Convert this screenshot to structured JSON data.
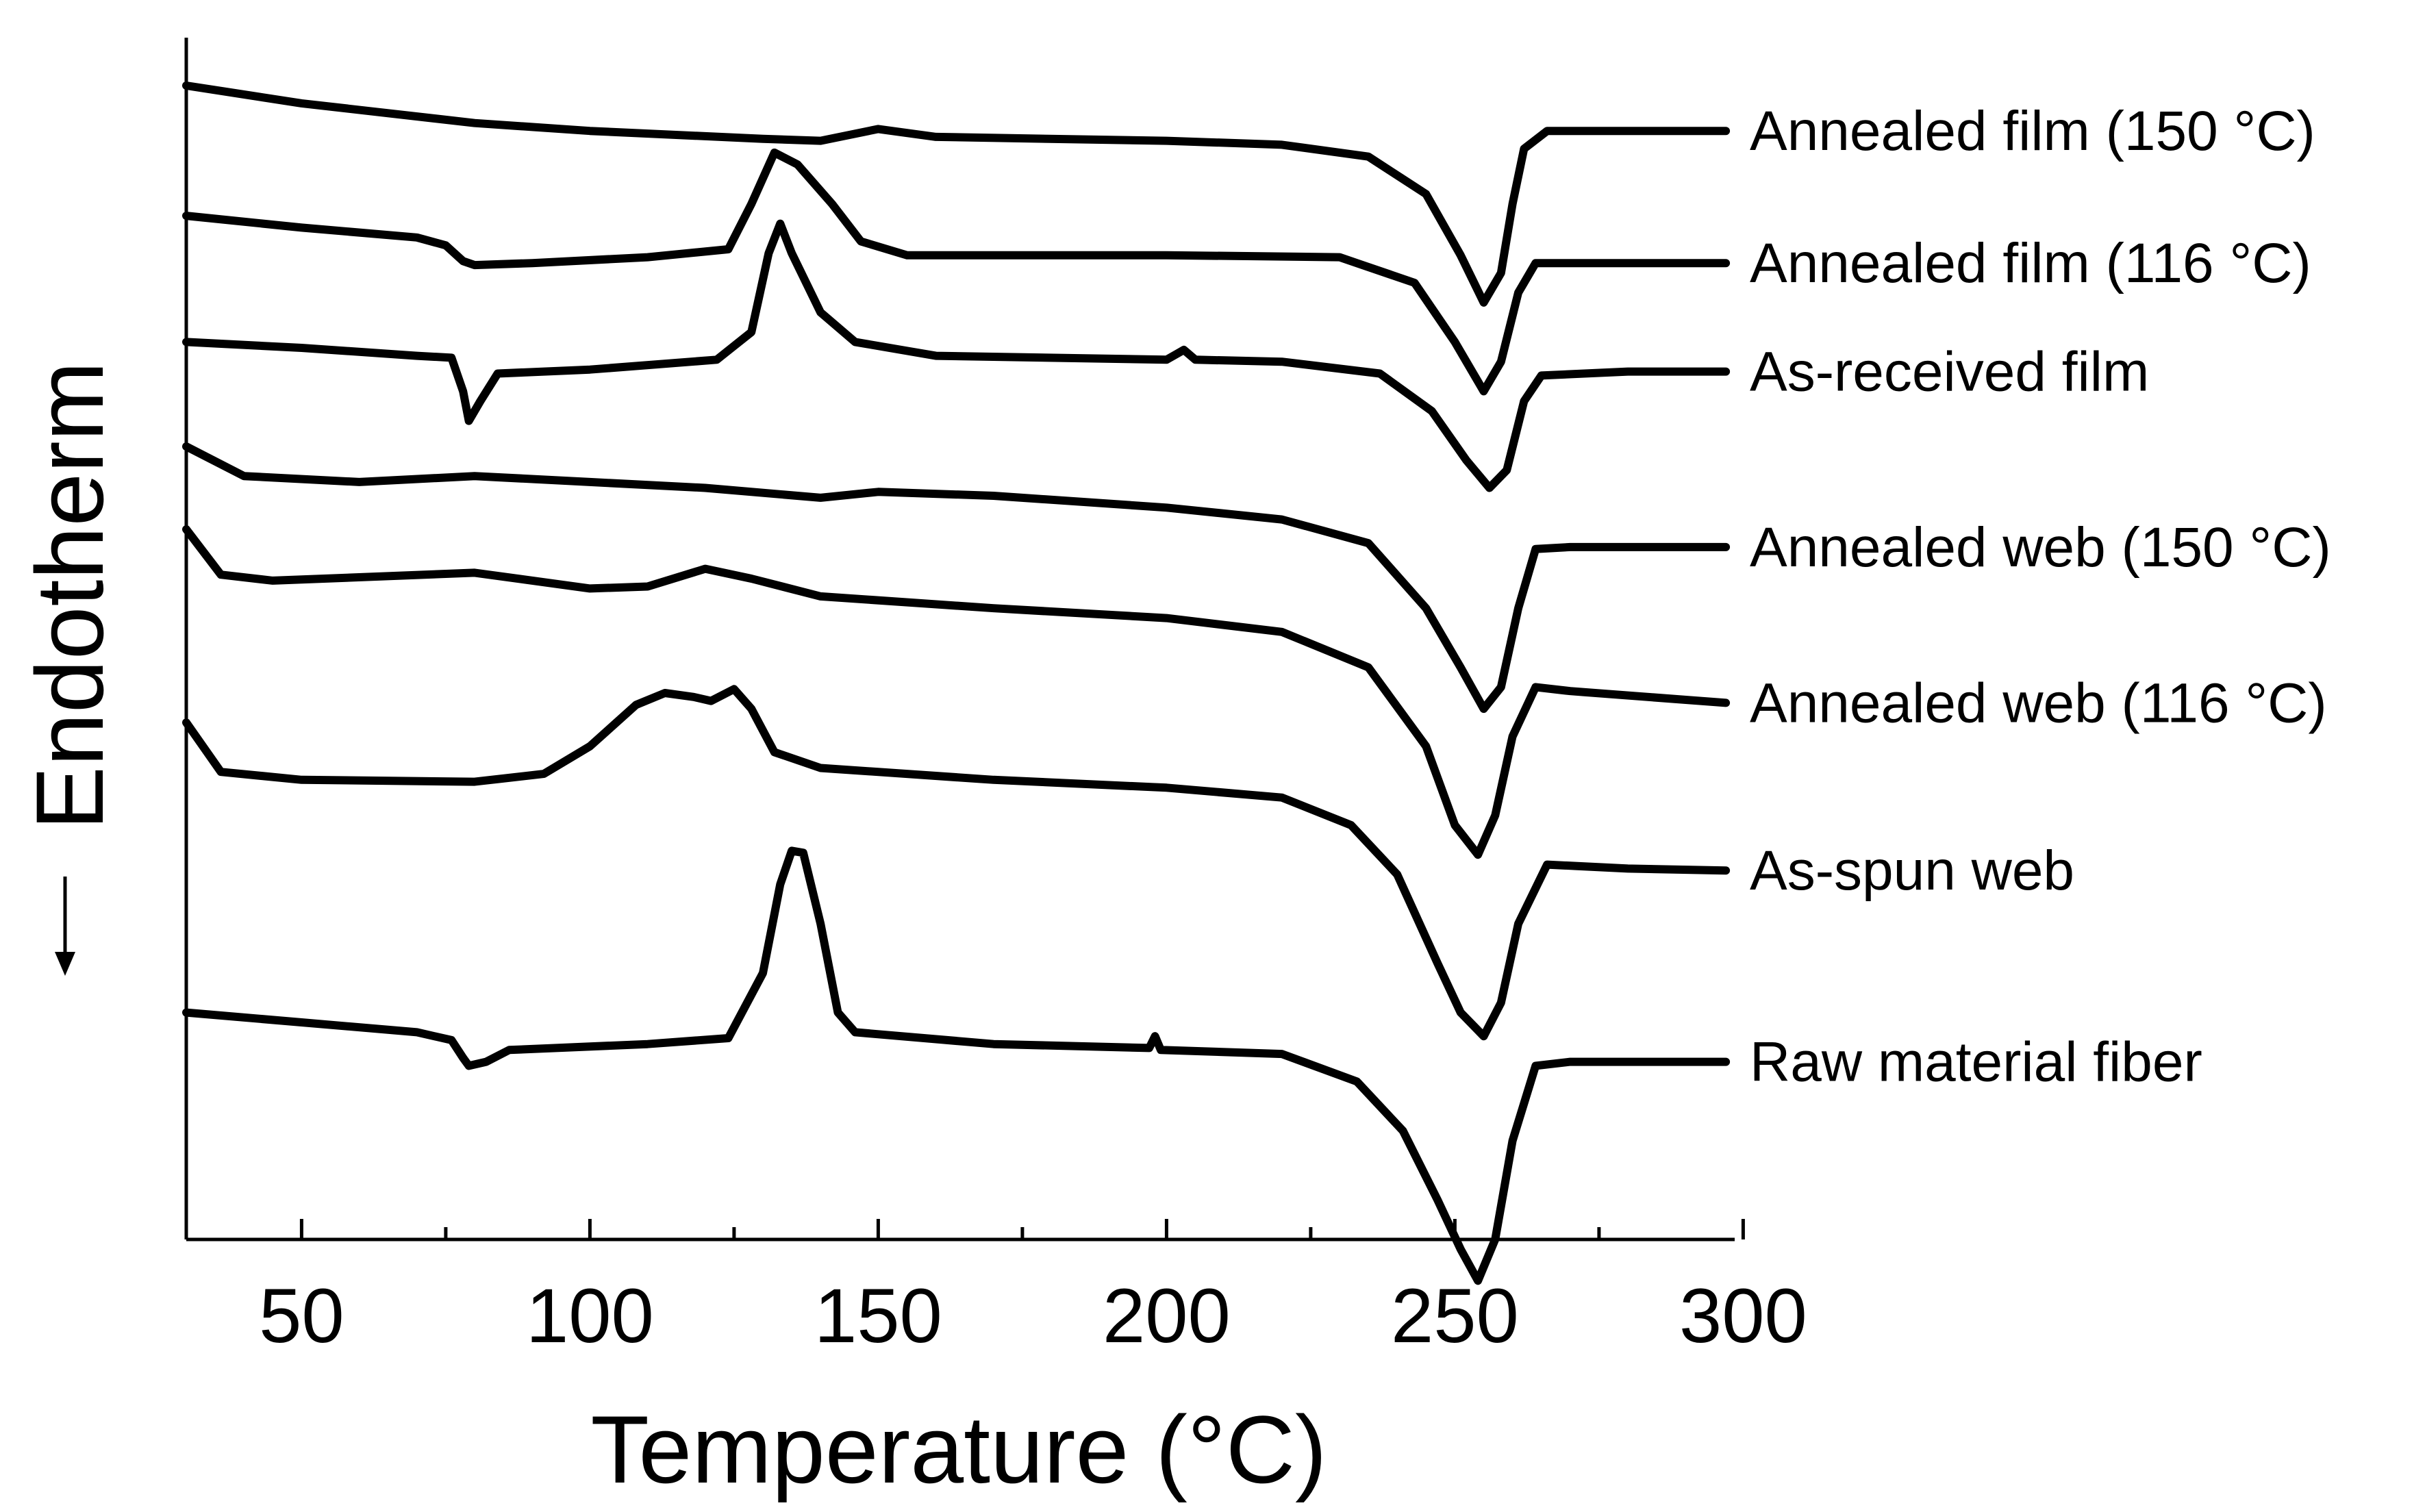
{
  "chart_data": {
    "type": "line",
    "title": "",
    "xlabel": "Temperature (°C)",
    "ylabel": "Endotherm",
    "ylabel_arrow": "down",
    "xlim": [
      30,
      300
    ],
    "xticks": [
      50,
      100,
      150,
      200,
      250,
      300
    ],
    "xtick_labels": [
      "50",
      "100",
      "150",
      "200",
      "250",
      "300"
    ],
    "y_units": "arbitrary (stacked DSC curves, offset)",
    "series": [
      {
        "name": "Annealed film (150 °C)",
        "points": [
          [
            30,
            0.0
          ],
          [
            50,
            -0.9
          ],
          [
            80,
            -1.9
          ],
          [
            100,
            -2.3
          ],
          [
            130,
            -2.7
          ],
          [
            140,
            -2.8
          ],
          [
            150,
            -2.2
          ],
          [
            160,
            -2.6
          ],
          [
            200,
            -2.8
          ],
          [
            220,
            -3.0
          ],
          [
            235,
            -3.6
          ],
          [
            245,
            -5.5
          ],
          [
            251,
            -8.6
          ],
          [
            255,
            -11.0
          ],
          [
            258,
            -9.5
          ],
          [
            260,
            -6.0
          ],
          [
            262,
            -3.2
          ],
          [
            266,
            -2.3
          ],
          [
            280,
            -2.3
          ],
          [
            297,
            -2.3
          ]
        ]
      },
      {
        "name": "Annealed film (116 °C)",
        "points": [
          [
            30,
            -6.6
          ],
          [
            50,
            -7.2
          ],
          [
            70,
            -7.7
          ],
          [
            75,
            -8.1
          ],
          [
            78,
            -8.9
          ],
          [
            80,
            -9.1
          ],
          [
            90,
            -9.0
          ],
          [
            110,
            -8.7
          ],
          [
            124,
            -8.3
          ],
          [
            128,
            -6.0
          ],
          [
            132,
            -3.4
          ],
          [
            136,
            -4.0
          ],
          [
            142,
            -6.0
          ],
          [
            147,
            -7.9
          ],
          [
            155,
            -8.6
          ],
          [
            200,
            -8.6
          ],
          [
            230,
            -8.7
          ],
          [
            243,
            -10.0
          ],
          [
            250,
            -13.0
          ],
          [
            255,
            -15.5
          ],
          [
            258,
            -14.0
          ],
          [
            261,
            -10.5
          ],
          [
            264,
            -9.0
          ],
          [
            280,
            -9.0
          ],
          [
            297,
            -9.0
          ]
        ]
      },
      {
        "name": "As-received film",
        "points": [
          [
            30,
            -13.0
          ],
          [
            50,
            -13.3
          ],
          [
            70,
            -13.7
          ],
          [
            76,
            -13.8
          ],
          [
            78,
            -15.5
          ],
          [
            79,
            -17.0
          ],
          [
            81,
            -16.0
          ],
          [
            84,
            -14.6
          ],
          [
            100,
            -14.4
          ],
          [
            122,
            -13.9
          ],
          [
            128,
            -12.5
          ],
          [
            131,
            -8.5
          ],
          [
            133,
            -7.0
          ],
          [
            135,
            -8.5
          ],
          [
            140,
            -11.5
          ],
          [
            146,
            -13.0
          ],
          [
            160,
            -13.7
          ],
          [
            200,
            -13.9
          ],
          [
            203,
            -13.4
          ],
          [
            205,
            -13.9
          ],
          [
            220,
            -14.0
          ],
          [
            237,
            -14.6
          ],
          [
            246,
            -16.5
          ],
          [
            252,
            -19.0
          ],
          [
            256,
            -20.4
          ],
          [
            259,
            -19.5
          ],
          [
            262,
            -16.0
          ],
          [
            265,
            -14.7
          ],
          [
            280,
            -14.5
          ],
          [
            297,
            -14.5
          ]
        ]
      },
      {
        "name": "Annealed web (150 °C)",
        "points": [
          [
            30,
            -18.3
          ],
          [
            40,
            -19.8
          ],
          [
            60,
            -20.1
          ],
          [
            80,
            -19.8
          ],
          [
            100,
            -20.1
          ],
          [
            120,
            -20.4
          ],
          [
            140,
            -20.9
          ],
          [
            150,
            -20.6
          ],
          [
            170,
            -20.8
          ],
          [
            200,
            -21.4
          ],
          [
            220,
            -22.0
          ],
          [
            235,
            -23.2
          ],
          [
            245,
            -26.5
          ],
          [
            251,
            -29.5
          ],
          [
            255,
            -31.6
          ],
          [
            258,
            -30.5
          ],
          [
            261,
            -26.5
          ],
          [
            264,
            -23.5
          ],
          [
            270,
            -23.4
          ],
          [
            297,
            -23.4
          ]
        ]
      },
      {
        "name": "Annealed web (116 °C)",
        "points": [
          [
            30,
            -22.5
          ],
          [
            36,
            -24.8
          ],
          [
            45,
            -25.1
          ],
          [
            80,
            -24.7
          ],
          [
            100,
            -25.5
          ],
          [
            110,
            -25.4
          ],
          [
            120,
            -24.5
          ],
          [
            128,
            -25.0
          ],
          [
            140,
            -25.9
          ],
          [
            170,
            -26.5
          ],
          [
            200,
            -27.0
          ],
          [
            220,
            -27.7
          ],
          [
            235,
            -29.5
          ],
          [
            245,
            -33.5
          ],
          [
            250,
            -37.5
          ],
          [
            254,
            -39.0
          ],
          [
            257,
            -37.0
          ],
          [
            260,
            -33.0
          ],
          [
            264,
            -30.5
          ],
          [
            270,
            -30.7
          ],
          [
            297,
            -31.3
          ]
        ]
      },
      {
        "name": "As-spun web",
        "points": [
          [
            30,
            -32.3
          ],
          [
            36,
            -34.8
          ],
          [
            50,
            -35.2
          ],
          [
            80,
            -35.3
          ],
          [
            92,
            -34.9
          ],
          [
            100,
            -33.5
          ],
          [
            108,
            -31.4
          ],
          [
            113,
            -30.8
          ],
          [
            118,
            -31.0
          ],
          [
            121,
            -31.2
          ],
          [
            125,
            -30.6
          ],
          [
            128,
            -31.6
          ],
          [
            132,
            -33.8
          ],
          [
            140,
            -34.6
          ],
          [
            170,
            -35.2
          ],
          [
            200,
            -35.6
          ],
          [
            220,
            -36.1
          ],
          [
            232,
            -37.5
          ],
          [
            240,
            -40.0
          ],
          [
            247,
            -44.5
          ],
          [
            251,
            -47.0
          ],
          [
            255,
            -48.2
          ],
          [
            258,
            -46.5
          ],
          [
            261,
            -42.5
          ],
          [
            266,
            -39.5
          ],
          [
            280,
            -39.7
          ],
          [
            297,
            -39.8
          ]
        ]
      },
      {
        "name": "Raw material fiber",
        "points": [
          [
            30,
            -47.0
          ],
          [
            50,
            -47.5
          ],
          [
            70,
            -48.0
          ],
          [
            76,
            -48.4
          ],
          [
            78,
            -49.3
          ],
          [
            79,
            -49.7
          ],
          [
            82,
            -49.5
          ],
          [
            86,
            -48.9
          ],
          [
            110,
            -48.6
          ],
          [
            124,
            -48.3
          ],
          [
            130,
            -45.0
          ],
          [
            133,
            -40.5
          ],
          [
            135,
            -38.8
          ],
          [
            137,
            -38.9
          ],
          [
            140,
            -42.5
          ],
          [
            143,
            -47.0
          ],
          [
            146,
            -48.0
          ],
          [
            170,
            -48.6
          ],
          [
            197,
            -48.8
          ],
          [
            198,
            -48.2
          ],
          [
            199,
            -48.9
          ],
          [
            220,
            -49.1
          ],
          [
            233,
            -50.5
          ],
          [
            241,
            -53.0
          ],
          [
            247,
            -56.5
          ],
          [
            251,
            -59.0
          ],
          [
            254,
            -60.6
          ],
          [
            257,
            -58.5
          ],
          [
            260,
            -53.5
          ],
          [
            264,
            -49.7
          ],
          [
            270,
            -49.5
          ],
          [
            297,
            -49.5
          ]
        ]
      }
    ]
  }
}
